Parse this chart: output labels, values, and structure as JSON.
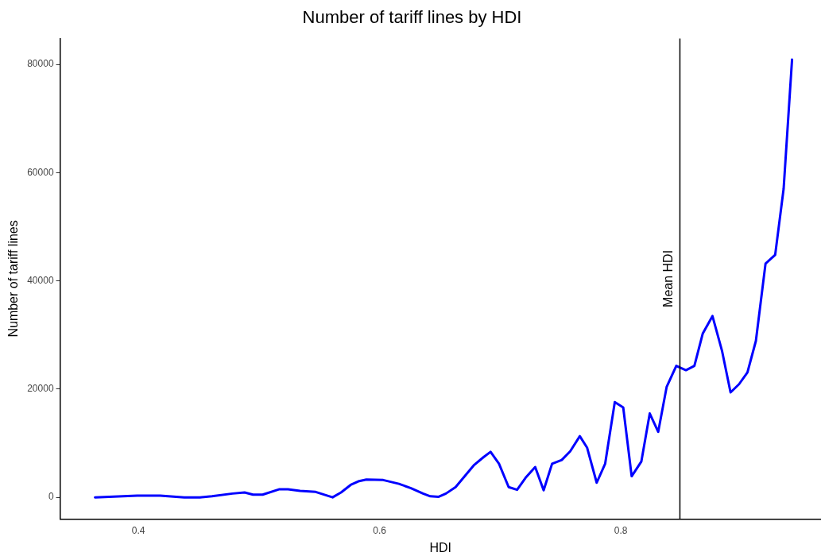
{
  "chart_data": {
    "type": "line",
    "title": "Number of tariff lines by HDI",
    "xlabel": "HDI",
    "ylabel": "Number of tariff lines",
    "x": [
      0.364,
      0.399,
      0.418,
      0.438,
      0.451,
      0.461,
      0.478,
      0.488,
      0.495,
      0.503,
      0.517,
      0.524,
      0.534,
      0.547,
      0.561,
      0.568,
      0.576,
      0.583,
      0.589,
      0.603,
      0.616,
      0.626,
      0.636,
      0.642,
      0.649,
      0.655,
      0.663,
      0.678,
      0.686,
      0.692,
      0.699,
      0.707,
      0.714,
      0.721,
      0.729,
      0.736,
      0.743,
      0.751,
      0.758,
      0.766,
      0.772,
      0.78,
      0.787,
      0.795,
      0.802,
      0.809,
      0.817,
      0.824,
      0.831,
      0.838,
      0.846,
      0.854,
      0.861,
      0.868,
      0.876,
      0.884,
      0.891,
      0.898,
      0.905,
      0.912,
      0.92,
      0.928,
      0.935,
      0.942
    ],
    "series": [
      {
        "color": "#0000ff",
        "values": [
          0,
          300,
          300,
          0,
          0,
          200,
          700,
          900,
          500,
          500,
          1500,
          1500,
          1200,
          1000,
          0,
          900,
          2300,
          3000,
          3300,
          3200,
          2500,
          1700,
          700,
          200,
          100,
          700,
          1900,
          5900,
          7400,
          8400,
          6200,
          1900,
          1400,
          3600,
          5600,
          1300,
          6200,
          6900,
          8500,
          11300,
          9200,
          2700,
          6200,
          17600,
          16600,
          3900,
          6600,
          15500,
          12100,
          20400,
          24300,
          23500,
          24300,
          30300,
          33500,
          27000,
          19400,
          20900,
          23100,
          28900,
          43200,
          44800,
          57000,
          80900
        ]
      }
    ],
    "xlim": [
      0.335,
      0.966
    ],
    "xticks": [
      0.4,
      0.6,
      0.8
    ],
    "ylim": [
      -4000,
      84800
    ],
    "yticks": [
      0,
      20000,
      40000,
      60000,
      80000
    ],
    "grid": false,
    "legend": false,
    "marker": "none",
    "line_style": "solid",
    "ref_lines": [
      {
        "axis": "x",
        "value": 0.849,
        "label": "Mean HDI",
        "color": "#000000"
      }
    ]
  }
}
